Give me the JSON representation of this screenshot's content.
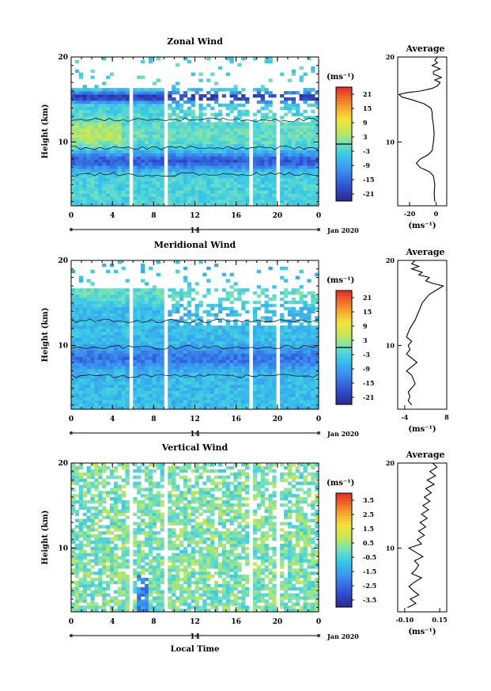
{
  "chart_data": [
    {
      "type": "heatmap",
      "title": "Zonal Wind",
      "ylabel": "Height (km)",
      "x_ticks": [
        "0",
        "4",
        "8",
        "12",
        "16",
        "20",
        "0"
      ],
      "xlim": [
        0,
        24
      ],
      "y_ticks": [
        "20",
        "10"
      ],
      "ylim": [
        2.5,
        20
      ],
      "date_center": "14",
      "date_label": "Jan 2020",
      "colorbar": {
        "unit": "(ms⁻¹)",
        "ticks": [
          "21",
          "15",
          "9",
          "3",
          "-3",
          "-9",
          "-15",
          "-21"
        ],
        "range": [
          -24,
          24
        ]
      },
      "average": {
        "title": "Average",
        "xlabel": "(ms⁻¹)",
        "x_ticks": [
          "-20",
          "0"
        ],
        "xlim": [
          -29,
          8
        ],
        "profile": [
          [
            3.0,
            -1
          ],
          [
            4.0,
            -1.5
          ],
          [
            5.0,
            -1
          ],
          [
            6.0,
            -2
          ],
          [
            6.5,
            -5
          ],
          [
            7.0,
            -12
          ],
          [
            7.5,
            -15
          ],
          [
            8.0,
            -12
          ],
          [
            8.5,
            -6
          ],
          [
            9.0,
            -3
          ],
          [
            10.0,
            -2
          ],
          [
            11.0,
            -1.5
          ],
          [
            12.0,
            -2
          ],
          [
            13.0,
            -3
          ],
          [
            13.5,
            -3
          ],
          [
            14.0,
            -4
          ],
          [
            14.5,
            -9
          ],
          [
            15.0,
            -19
          ],
          [
            15.3,
            -26
          ],
          [
            15.6,
            -28
          ],
          [
            15.8,
            -22
          ],
          [
            16.0,
            -12
          ],
          [
            16.3,
            -3
          ],
          [
            16.6,
            1
          ],
          [
            17.0,
            3
          ],
          [
            17.3,
            -1
          ],
          [
            17.6,
            4
          ],
          [
            18.0,
            -2
          ],
          [
            18.3,
            -2
          ],
          [
            18.6,
            3
          ],
          [
            19.0,
            -3
          ],
          [
            19.3,
            1
          ],
          [
            19.6,
            -1
          ],
          [
            20.0,
            1
          ]
        ]
      }
    },
    {
      "type": "heatmap",
      "title": "Meridional Wind",
      "ylabel": "Height (km)",
      "x_ticks": [
        "0",
        "4",
        "8",
        "12",
        "16",
        "20",
        "0"
      ],
      "xlim": [
        0,
        24
      ],
      "y_ticks": [
        "20",
        "10"
      ],
      "ylim": [
        2.5,
        20
      ],
      "date_center": "14",
      "date_label": "Jan 2020",
      "colorbar": {
        "unit": "(ms⁻¹)",
        "ticks": [
          "21",
          "15",
          "9",
          "3",
          "-3",
          "-9",
          "-15",
          "-21"
        ],
        "range": [
          -24,
          24
        ]
      },
      "average": {
        "title": "Average",
        "xlabel": "(ms⁻¹)",
        "x_ticks": [
          "-4",
          "8"
        ],
        "xlim": [
          -6,
          8
        ],
        "profile": [
          [
            3.0,
            -2
          ],
          [
            3.5,
            -3
          ],
          [
            4.0,
            -2.5
          ],
          [
            4.5,
            -3
          ],
          [
            5.0,
            -2
          ],
          [
            5.5,
            -1
          ],
          [
            6.0,
            -1.5
          ],
          [
            6.5,
            -2
          ],
          [
            7.0,
            -3.5
          ],
          [
            7.5,
            -2
          ],
          [
            8.0,
            -0.5
          ],
          [
            9.0,
            -3.5
          ],
          [
            9.5,
            -2.5
          ],
          [
            10.0,
            -3
          ],
          [
            10.5,
            -2
          ],
          [
            11.0,
            -3.5
          ],
          [
            12.0,
            -2.5
          ],
          [
            13.0,
            -1
          ],
          [
            14.0,
            0
          ],
          [
            15.0,
            1
          ],
          [
            15.5,
            2
          ],
          [
            16.0,
            3
          ],
          [
            16.5,
            5
          ],
          [
            17.0,
            7
          ],
          [
            17.3,
            4
          ],
          [
            17.6,
            2
          ],
          [
            18.0,
            3
          ],
          [
            18.3,
            0
          ],
          [
            18.6,
            1
          ],
          [
            19.0,
            -2
          ],
          [
            19.3,
            0
          ],
          [
            19.6,
            -2
          ],
          [
            20.0,
            -1
          ]
        ]
      }
    },
    {
      "type": "heatmap",
      "title": "Vertical Wind",
      "ylabel": "Height (km)",
      "xlabel": "Local Time",
      "x_ticks": [
        "0",
        "4",
        "8",
        "12",
        "16",
        "20",
        "0"
      ],
      "xlim": [
        0,
        24
      ],
      "y_ticks": [
        "20",
        "10"
      ],
      "ylim": [
        2.5,
        20
      ],
      "date_center": "14",
      "date_label": "Jan 2020",
      "colorbar": {
        "unit": "(ms⁻¹)",
        "ticks": [
          "3.5",
          "2.5",
          "1.5",
          "0.5",
          "-0.5",
          "-1.5",
          "-2.5",
          "-3.5"
        ],
        "range": [
          -4,
          4
        ]
      },
      "average": {
        "title": "Average",
        "xlabel": "(ms⁻¹)",
        "x_ticks": [
          "-0.10",
          "0.15"
        ],
        "xlim": [
          -0.15,
          0.2
        ],
        "profile": [
          [
            3.0,
            -0.08
          ],
          [
            3.5,
            -0.02
          ],
          [
            4.0,
            -0.06
          ],
          [
            4.5,
            0.0
          ],
          [
            5.0,
            -0.04
          ],
          [
            5.5,
            -0.07
          ],
          [
            6.0,
            -0.03
          ],
          [
            6.5,
            0.02
          ],
          [
            7.0,
            -0.05
          ],
          [
            7.5,
            -0.02
          ],
          [
            8.0,
            0.0
          ],
          [
            8.5,
            -0.03
          ],
          [
            9.0,
            0.03
          ],
          [
            9.5,
            -0.02
          ],
          [
            10.0,
            -0.07
          ],
          [
            10.5,
            0.02
          ],
          [
            11.0,
            -0.01
          ],
          [
            11.5,
            0.04
          ],
          [
            12.0,
            0.0
          ],
          [
            12.5,
            0.05
          ],
          [
            13.0,
            0.01
          ],
          [
            13.5,
            0.06
          ],
          [
            14.0,
            0.02
          ],
          [
            14.5,
            0.07
          ],
          [
            15.0,
            0.03
          ],
          [
            15.5,
            0.08
          ],
          [
            16.0,
            0.04
          ],
          [
            16.5,
            0.09
          ],
          [
            17.0,
            0.05
          ],
          [
            17.5,
            0.11
          ],
          [
            18.0,
            0.06
          ],
          [
            18.5,
            0.12
          ],
          [
            19.0,
            0.08
          ],
          [
            19.5,
            0.13
          ],
          [
            20.0,
            0.1
          ]
        ]
      }
    }
  ]
}
